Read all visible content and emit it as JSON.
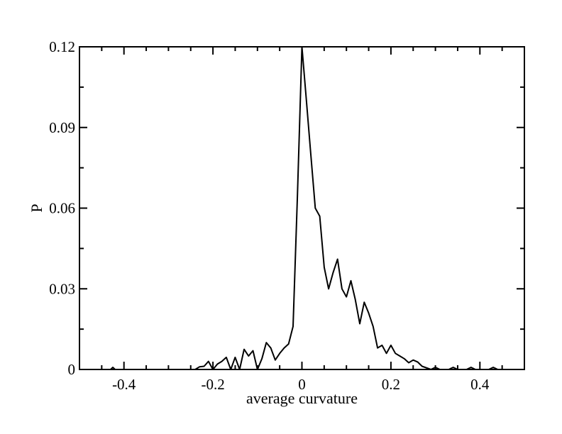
{
  "chart_data": {
    "type": "line",
    "title": "",
    "xlabel": "average curvature",
    "ylabel": "P",
    "xlim": [
      -0.5,
      0.5
    ],
    "ylim": [
      0,
      0.12
    ],
    "x_ticks": [
      -0.4,
      -0.2,
      0,
      0.2,
      0.4
    ],
    "x_tick_labels": [
      "-0.4",
      "-0.2",
      "0",
      "0.2",
      "0.4"
    ],
    "y_ticks": [
      0,
      0.03,
      0.06,
      0.09,
      0.12
    ],
    "y_tick_labels": [
      "0",
      "0.03",
      "0.06",
      "0.09",
      "0.12"
    ],
    "grid": false,
    "legend": "none",
    "line_color": "#000000",
    "series": [
      {
        "x": [
          -0.43,
          -0.425,
          -0.42,
          -0.24,
          -0.23,
          -0.22,
          -0.21,
          -0.2,
          -0.19,
          -0.18,
          -0.17,
          -0.16,
          -0.15,
          -0.14,
          -0.13,
          -0.12,
          -0.11,
          -0.1,
          -0.09,
          -0.08,
          -0.07,
          -0.06,
          -0.05,
          -0.04,
          -0.03,
          -0.02,
          -0.01,
          0.0,
          0.01,
          0.02,
          0.03,
          0.04,
          0.05,
          0.06,
          0.07,
          0.08,
          0.09,
          0.1,
          0.11,
          0.12,
          0.13,
          0.14,
          0.15,
          0.16,
          0.17,
          0.18,
          0.19,
          0.2,
          0.21,
          0.22,
          0.23,
          0.24,
          0.25,
          0.26,
          0.27,
          0.29,
          0.3,
          0.31,
          0.33,
          0.34,
          0.35,
          0.37,
          0.38,
          0.39,
          0.42,
          0.43,
          0.44
        ],
        "y": [
          0,
          0.0008,
          0,
          0,
          0.001,
          0.0012,
          0.003,
          0,
          0.002,
          0.003,
          0.0045,
          0,
          0.0045,
          0,
          0.0075,
          0.005,
          0.007,
          0,
          0.004,
          0.01,
          0.008,
          0.0035,
          0.006,
          0.008,
          0.0095,
          0.016,
          0.065,
          0.12,
          0.1,
          0.08,
          0.06,
          0.057,
          0.038,
          0.03,
          0.036,
          0.041,
          0.03,
          0.027,
          0.033,
          0.026,
          0.017,
          0.025,
          0.021,
          0.016,
          0.008,
          0.009,
          0.006,
          0.009,
          0.006,
          0.005,
          0.004,
          0.0025,
          0.0035,
          0.0028,
          0.0012,
          0,
          0.0008,
          0,
          0,
          0.0008,
          0,
          0,
          0.0008,
          0,
          0,
          0.0008,
          0
        ]
      }
    ]
  }
}
